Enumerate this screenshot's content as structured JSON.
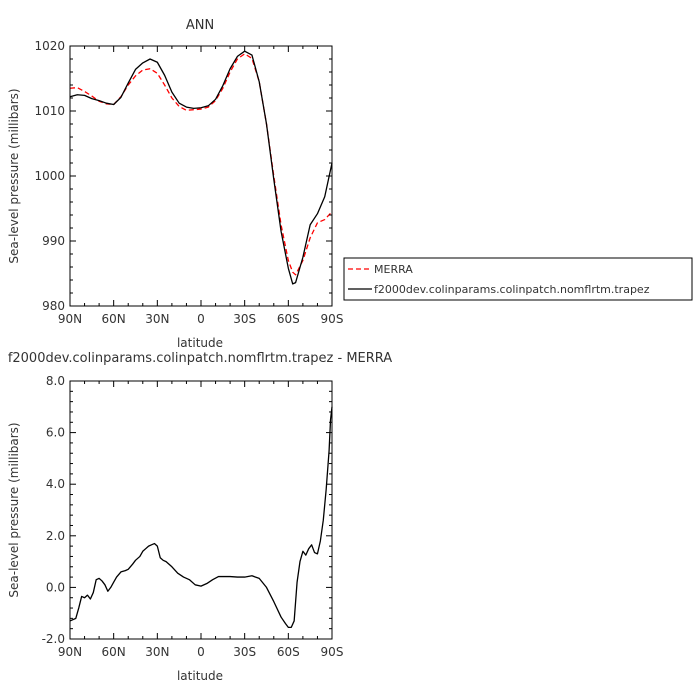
{
  "chart_data": [
    {
      "type": "line",
      "title": "ANN",
      "xlabel": "latitude",
      "ylabel": "Sea-level pressure (millibars)",
      "x_ticks": [
        {
          "value": 90,
          "label": "90N"
        },
        {
          "value": 60,
          "label": "60N"
        },
        {
          "value": 30,
          "label": "30N"
        },
        {
          "value": 0,
          "label": "0"
        },
        {
          "value": -30,
          "label": "30S"
        },
        {
          "value": -60,
          "label": "60S"
        },
        {
          "value": -90,
          "label": "90S"
        }
      ],
      "y_ticks": [
        {
          "value": 1020,
          "label": "1020"
        },
        {
          "value": 1010,
          "label": "1010"
        },
        {
          "value": 1000,
          "label": "1000"
        },
        {
          "value": 990,
          "label": "990"
        },
        {
          "value": 980,
          "label": "980"
        }
      ],
      "xlim": [
        90,
        -90
      ],
      "ylim": [
        980,
        1020
      ],
      "grid": false,
      "legend_position": "right, outside plot",
      "series": [
        {
          "name": "MERRA",
          "color": "#ff0000",
          "dash": true,
          "x": [
            90,
            85,
            80,
            75,
            70,
            65,
            60,
            55,
            50,
            45,
            40,
            35,
            30,
            25,
            20,
            15,
            10,
            5,
            0,
            -5,
            -10,
            -15,
            -20,
            -25,
            -30,
            -35,
            -40,
            -45,
            -50,
            -55,
            -60,
            -63,
            -65,
            -70,
            -75,
            -80,
            -85,
            -90
          ],
          "y": [
            1013.5,
            1013.6,
            1013.0,
            1012.3,
            1011.5,
            1011.1,
            1011.0,
            1012.2,
            1014.0,
            1015.4,
            1016.3,
            1016.5,
            1015.8,
            1014.0,
            1012.0,
            1010.7,
            1010.1,
            1010.2,
            1010.3,
            1010.6,
            1011.6,
            1013.5,
            1016.0,
            1018.0,
            1018.8,
            1018.1,
            1014.5,
            1008.0,
            1000.0,
            992.5,
            987.0,
            985.2,
            984.8,
            987.0,
            990.5,
            992.8,
            993.3,
            994.5
          ]
        },
        {
          "name": "f2000dev.colinparams.colinpatch.nomflrtm.trapez",
          "color": "#000000",
          "dash": false,
          "x": [
            90,
            85,
            80,
            75,
            70,
            65,
            60,
            55,
            50,
            45,
            40,
            35,
            30,
            25,
            20,
            15,
            10,
            5,
            0,
            -5,
            -10,
            -15,
            -20,
            -25,
            -30,
            -35,
            -40,
            -45,
            -50,
            -55,
            -60,
            -63,
            -65,
            -70,
            -75,
            -80,
            -85,
            -90
          ],
          "y": [
            1012.2,
            1012.5,
            1012.4,
            1011.9,
            1011.6,
            1011.2,
            1011.0,
            1012.1,
            1014.3,
            1016.4,
            1017.4,
            1018.0,
            1017.5,
            1015.5,
            1012.9,
            1011.2,
            1010.6,
            1010.4,
            1010.5,
            1010.8,
            1011.8,
            1013.9,
            1016.5,
            1018.4,
            1019.2,
            1018.6,
            1014.5,
            1008.0,
            999.5,
            991.5,
            985.8,
            983.4,
            983.6,
            987.5,
            992.5,
            994.2,
            996.8,
            1002.0
          ]
        }
      ]
    },
    {
      "type": "line",
      "title": "f2000dev.colinparams.colinpatch.nomflrtm.trapez - MERRA",
      "xlabel": "latitude",
      "ylabel": "Sea-level pressure (millibars)",
      "x_ticks": [
        {
          "value": 90,
          "label": "90N"
        },
        {
          "value": 60,
          "label": "60N"
        },
        {
          "value": 30,
          "label": "30N"
        },
        {
          "value": 0,
          "label": "0"
        },
        {
          "value": -30,
          "label": "30S"
        },
        {
          "value": -60,
          "label": "60S"
        },
        {
          "value": -90,
          "label": "90S"
        }
      ],
      "y_ticks": [
        {
          "value": 8,
          "label": "8.0"
        },
        {
          "value": 6,
          "label": "6.0"
        },
        {
          "value": 4,
          "label": "4.0"
        },
        {
          "value": 2,
          "label": "2.0"
        },
        {
          "value": 0,
          "label": "0.0"
        },
        {
          "value": -2,
          "label": "-2.0"
        }
      ],
      "xlim": [
        90,
        -90
      ],
      "ylim": [
        -2,
        8
      ],
      "grid": false,
      "series": [
        {
          "color": "#000000",
          "dash": false,
          "x": [
            90,
            86,
            84,
            82,
            80,
            78,
            76,
            74,
            72,
            70,
            68,
            66,
            64,
            62,
            60,
            58,
            55,
            52,
            50,
            47,
            45,
            42,
            40,
            38,
            36,
            34,
            32,
            30,
            28,
            26,
            24,
            20,
            16,
            12,
            8,
            4,
            0,
            -4,
            -8,
            -12,
            -15,
            -20,
            -25,
            -30,
            -35,
            -40,
            -45,
            -50,
            -55,
            -58,
            -60,
            -62,
            -64,
            -66,
            -68,
            -70,
            -72,
            -74,
            -76,
            -78,
            -80,
            -82,
            -84,
            -86,
            -88,
            -89,
            -90
          ],
          "y": [
            -1.3,
            -1.2,
            -0.8,
            -0.35,
            -0.4,
            -0.3,
            -0.45,
            -0.2,
            0.3,
            0.35,
            0.25,
            0.1,
            -0.15,
            0.0,
            0.2,
            0.4,
            0.6,
            0.65,
            0.7,
            0.9,
            1.05,
            1.2,
            1.4,
            1.5,
            1.6,
            1.65,
            1.7,
            1.6,
            1.15,
            1.05,
            1.0,
            0.8,
            0.55,
            0.4,
            0.3,
            0.1,
            0.05,
            0.15,
            0.3,
            0.42,
            0.42,
            0.42,
            0.4,
            0.4,
            0.45,
            0.35,
            0.0,
            -0.55,
            -1.15,
            -1.4,
            -1.55,
            -1.55,
            -1.3,
            0.2,
            1.0,
            1.4,
            1.25,
            1.5,
            1.65,
            1.35,
            1.3,
            1.8,
            2.6,
            3.8,
            5.3,
            6.5,
            7.0
          ]
        }
      ]
    }
  ]
}
